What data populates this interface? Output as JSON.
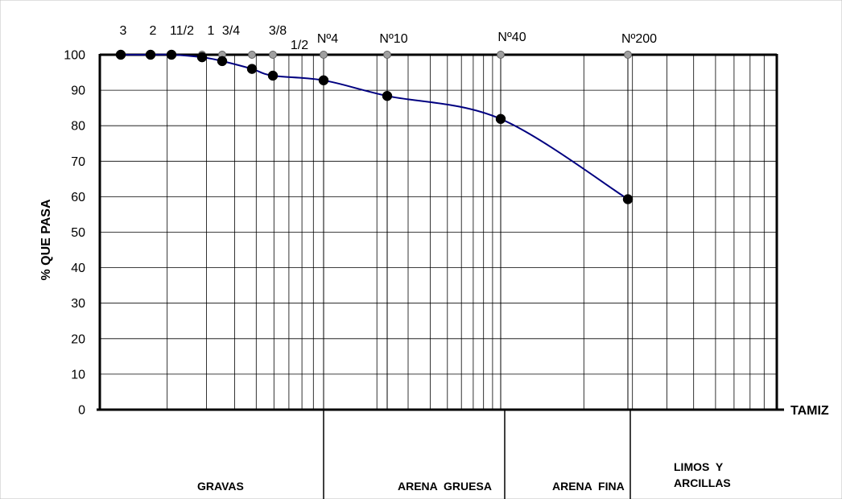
{
  "chart_data": {
    "type": "line",
    "title": "",
    "ylabel": "% QUE PASA",
    "xlabel": "TAMIZ",
    "ylim": [
      0,
      100
    ],
    "y_ticks": [
      0,
      10,
      20,
      30,
      40,
      50,
      60,
      70,
      80,
      90,
      100
    ],
    "x_scale": "log",
    "x_direction": "reversed",
    "grid": true,
    "sieve_labels": [
      "3",
      "2",
      "11/2",
      "1",
      "3/4",
      "3/8",
      "1/2",
      "Nº4",
      "Nº10",
      "Nº40",
      "Nº200"
    ],
    "series": [
      {
        "color": "#000080",
        "marker": "black-dot",
        "points": [
          {
            "sieve": "3",
            "y": 100
          },
          {
            "sieve": "2",
            "y": 100
          },
          {
            "sieve": "11/2",
            "y": 100
          },
          {
            "sieve": "1",
            "y": 99.3
          },
          {
            "sieve": "3/4",
            "y": 98.2
          },
          {
            "sieve": "1/2",
            "y": 96.0
          },
          {
            "sieve": "3/8",
            "y": 94.1
          },
          {
            "sieve": "Nº4",
            "y": 92.8
          },
          {
            "sieve": "Nº10",
            "y": 88.4
          },
          {
            "sieve": "Nº40",
            "y": 81.9
          },
          {
            "sieve": "Nº200",
            "y": 59.3
          }
        ]
      }
    ],
    "zones": [
      "GRAVAS",
      "ARENA  GRUESA",
      "ARENA  FINA",
      "LIMOS  Y ARCILLAS"
    ]
  }
}
